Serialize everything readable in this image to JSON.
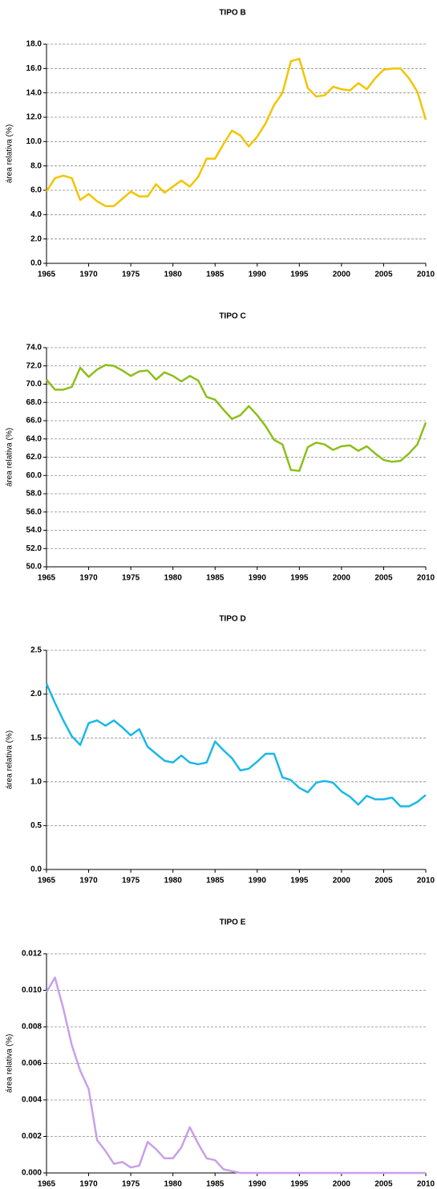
{
  "chart_data": [
    {
      "type": "line",
      "title": "TIPO B",
      "ylabel": "área relativa (%)",
      "color": "#f2c500",
      "grid": true,
      "x": [
        1965,
        1966,
        1967,
        1968,
        1969,
        1970,
        1971,
        1972,
        1973,
        1974,
        1975,
        1976,
        1977,
        1978,
        1979,
        1980,
        1981,
        1982,
        1983,
        1984,
        1985,
        1986,
        1987,
        1988,
        1989,
        1990,
        1991,
        1992,
        1993,
        1994,
        1995,
        1996,
        1997,
        1998,
        1999,
        2000,
        2001,
        2002,
        2003,
        2004,
        2005,
        2006,
        2007,
        2008,
        2009,
        2010
      ],
      "values": [
        5.9,
        7.0,
        7.2,
        7.0,
        5.2,
        5.7,
        5.1,
        4.7,
        4.7,
        5.3,
        5.9,
        5.5,
        5.5,
        6.5,
        5.8,
        6.3,
        6.8,
        6.3,
        7.1,
        8.6,
        8.6,
        9.8,
        10.9,
        10.5,
        9.6,
        10.4,
        11.5,
        13.0,
        14.0,
        16.6,
        16.8,
        14.4,
        13.7,
        13.8,
        14.5,
        14.3,
        14.2,
        14.8,
        14.3,
        15.2,
        15.9,
        16.0,
        16.0,
        15.2,
        14.1,
        11.8
      ],
      "xlim": [
        1965,
        2010
      ],
      "xticks": [
        1965,
        1970,
        1975,
        1980,
        1985,
        1990,
        1995,
        2000,
        2005,
        2010
      ],
      "ylim": [
        0,
        18
      ],
      "yticks": [
        {
          "value": 0,
          "label": "0.0"
        },
        {
          "value": 2,
          "label": "2.0"
        },
        {
          "value": 4,
          "label": "4.0"
        },
        {
          "value": 6,
          "label": "6.0"
        },
        {
          "value": 8,
          "label": "8.0"
        },
        {
          "value": 10,
          "label": "10.0"
        },
        {
          "value": 12,
          "label": "12.0"
        },
        {
          "value": 14,
          "label": "14.0"
        },
        {
          "value": 16,
          "label": "16.0"
        },
        {
          "value": 18,
          "label": "18.0"
        }
      ]
    },
    {
      "type": "line",
      "title": "TIPO C",
      "ylabel": "área relativa (%)",
      "color": "#8cbf1a",
      "grid": true,
      "x": [
        1965,
        1966,
        1967,
        1968,
        1969,
        1970,
        1971,
        1972,
        1973,
        1974,
        1975,
        1976,
        1977,
        1978,
        1979,
        1980,
        1981,
        1982,
        1983,
        1984,
        1985,
        1986,
        1987,
        1988,
        1989,
        1990,
        1991,
        1992,
        1993,
        1994,
        1995,
        1996,
        1997,
        1998,
        1999,
        2000,
        2001,
        2002,
        2003,
        2004,
        2005,
        2006,
        2007,
        2008,
        2009,
        2010
      ],
      "values": [
        70.5,
        69.4,
        69.4,
        69.7,
        71.8,
        70.8,
        71.6,
        72.1,
        72.0,
        71.5,
        70.9,
        71.4,
        71.5,
        70.5,
        71.3,
        70.9,
        70.3,
        70.9,
        70.4,
        68.6,
        68.3,
        67.2,
        66.2,
        66.6,
        67.6,
        66.6,
        65.4,
        63.9,
        63.4,
        60.6,
        60.5,
        63.1,
        63.6,
        63.4,
        62.8,
        63.2,
        63.3,
        62.7,
        63.2,
        62.4,
        61.7,
        61.5,
        61.6,
        62.4,
        63.4,
        65.8
      ],
      "xlim": [
        1965,
        2010
      ],
      "xticks": [
        1965,
        1970,
        1975,
        1980,
        1985,
        1990,
        1995,
        2000,
        2005,
        2010
      ],
      "ylim": [
        50,
        74
      ],
      "yticks": [
        {
          "value": 50,
          "label": "50.0"
        },
        {
          "value": 52,
          "label": "52.0"
        },
        {
          "value": 54,
          "label": "54.0"
        },
        {
          "value": 56,
          "label": "56.0"
        },
        {
          "value": 58,
          "label": "58.0"
        },
        {
          "value": 60,
          "label": "60.0"
        },
        {
          "value": 62,
          "label": "62.0"
        },
        {
          "value": 64,
          "label": "64.0"
        },
        {
          "value": 66,
          "label": "66.0"
        },
        {
          "value": 68,
          "label": "68.0"
        },
        {
          "value": 70,
          "label": "70.0"
        },
        {
          "value": 72,
          "label": "72.0"
        },
        {
          "value": 74,
          "label": "74.0"
        }
      ]
    },
    {
      "type": "line",
      "title": "TIPO D",
      "ylabel": "área relativa (%)",
      "color": "#1ab8e8",
      "grid": true,
      "x": [
        1965,
        1966,
        1967,
        1968,
        1969,
        1970,
        1971,
        1972,
        1973,
        1974,
        1975,
        1976,
        1977,
        1978,
        1979,
        1980,
        1981,
        1982,
        1983,
        1984,
        1985,
        1986,
        1987,
        1988,
        1989,
        1990,
        1991,
        1992,
        1993,
        1994,
        1995,
        1996,
        1997,
        1998,
        1999,
        2000,
        2001,
        2002,
        2003,
        2004,
        2005,
        2006,
        2007,
        2008,
        2009,
        2010
      ],
      "values": [
        2.12,
        1.9,
        1.7,
        1.52,
        1.42,
        1.67,
        1.7,
        1.64,
        1.7,
        1.62,
        1.53,
        1.6,
        1.4,
        1.32,
        1.24,
        1.22,
        1.3,
        1.22,
        1.2,
        1.22,
        1.46,
        1.36,
        1.27,
        1.13,
        1.15,
        1.23,
        1.32,
        1.32,
        1.05,
        1.02,
        0.93,
        0.88,
        0.99,
        1.01,
        0.99,
        0.89,
        0.83,
        0.74,
        0.84,
        0.8,
        0.8,
        0.82,
        0.72,
        0.72,
        0.77,
        0.85
      ],
      "xlim": [
        1965,
        2010
      ],
      "xticks": [
        1965,
        1970,
        1975,
        1980,
        1985,
        1990,
        1995,
        2000,
        2005,
        2010
      ],
      "ylim": [
        0,
        2.5
      ],
      "yticks": [
        {
          "value": 0,
          "label": "0.0"
        },
        0.5,
        {
          "value": 1,
          "label": "1.0"
        },
        1.5,
        {
          "value": 2,
          "label": "2.0"
        },
        2.5
      ]
    },
    {
      "type": "line",
      "title": "TIPO E",
      "ylabel": "área relativa (%)",
      "color": "#c8a0e8",
      "grid": true,
      "x": [
        1965,
        1966,
        1967,
        1968,
        1969,
        1970,
        1971,
        1972,
        1973,
        1974,
        1975,
        1976,
        1977,
        1978,
        1979,
        1980,
        1981,
        1982,
        1983,
        1984,
        1985,
        1986,
        1987,
        1988,
        1989,
        1990,
        1991,
        1992,
        1993,
        1994,
        1995,
        1996,
        1997,
        1998,
        1999,
        2000,
        2001,
        2002,
        2003,
        2004,
        2005,
        2006,
        2007,
        2008,
        2009,
        2010
      ],
      "values": [
        0.0099,
        0.0107,
        0.009,
        0.007,
        0.0056,
        0.0046,
        0.0018,
        0.0012,
        0.0005,
        0.0006,
        0.0003,
        0.0004,
        0.0017,
        0.0013,
        0.0008,
        0.0008,
        0.0014,
        0.0025,
        0.0016,
        0.0008,
        0.0007,
        0.0002,
        0.0001,
        0,
        0,
        0,
        0,
        0,
        0,
        0,
        0,
        0,
        0,
        0,
        0,
        0,
        0,
        0,
        0,
        0,
        0,
        0,
        0,
        0,
        0,
        0
      ],
      "xlim": [
        1965,
        2010
      ],
      "xticks": [
        1965,
        1970,
        1975,
        1980,
        1985,
        1990,
        1995,
        2000,
        2005,
        2010
      ],
      "ylim": [
        0,
        0.012
      ],
      "yticks": [
        {
          "value": 0,
          "label": "0.000"
        },
        0.002,
        0.004,
        0.006,
        0.008,
        {
          "value": 0.01,
          "label": "0.010"
        },
        0.012
      ]
    }
  ]
}
